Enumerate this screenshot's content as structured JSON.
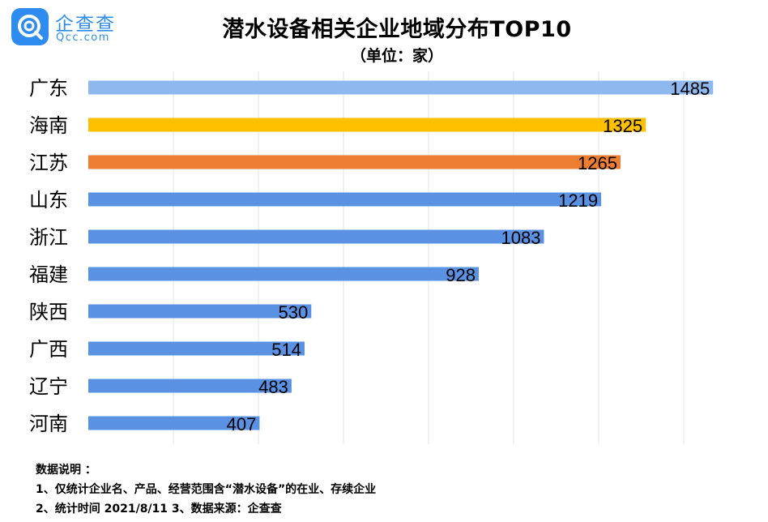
{
  "logo": {
    "name": "企查查",
    "domain": "Qcc.com",
    "icon": "qcc-logo-icon"
  },
  "title": "潜水设备相关企业地域分布TOP10",
  "unit": "（单位：家）",
  "chart_data": {
    "type": "bar",
    "orientation": "horizontal",
    "categories": [
      "广东",
      "海南",
      "江苏",
      "山东",
      "浙江",
      "福建",
      "陕西",
      "广西",
      "辽宁",
      "河南"
    ],
    "values": [
      1485,
      1325,
      1265,
      1219,
      1083,
      928,
      530,
      514,
      483,
      407
    ],
    "colors": [
      "#8fb8ee",
      "#ffc000",
      "#ed7d31",
      "#5a91e3",
      "#5a91e3",
      "#5a91e3",
      "#5a91e3",
      "#5a91e3",
      "#5a91e3",
      "#5a91e3"
    ],
    "xlim": [
      0,
      1500
    ],
    "grid": true,
    "data_labels": true,
    "title": "潜水设备相关企业地域分布TOP10",
    "unit": "（单位：家）"
  },
  "notes": {
    "heading": "数据说明 ：",
    "line1": "1、仅统计企业名、产品、经营范围含“潜水设备”的在业、存续企业",
    "line2": "2、统计时间  2021/8/11    3、数据来源：企查查"
  }
}
